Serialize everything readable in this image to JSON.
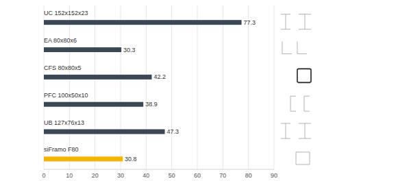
{
  "chart_data": {
    "type": "bar",
    "orientation": "horizontal",
    "categories": [
      "UC 152x152x23",
      "EA 80x80x6",
      "CFS 80x80x5",
      "PFC 100x50x10",
      "UB 127x76x13",
      "siFramo F80"
    ],
    "values": [
      77.3,
      30.3,
      42.2,
      38.9,
      47.3,
      30.8
    ],
    "colors": [
      "#3b4657",
      "#3b4657",
      "#3b4657",
      "#3b4657",
      "#3b4657",
      "#f5b400"
    ],
    "xlim": [
      0,
      90
    ],
    "xticks": [
      0,
      10,
      20,
      30,
      40,
      50,
      60,
      70,
      80,
      90
    ],
    "grid": true,
    "data_labels": true
  }
}
